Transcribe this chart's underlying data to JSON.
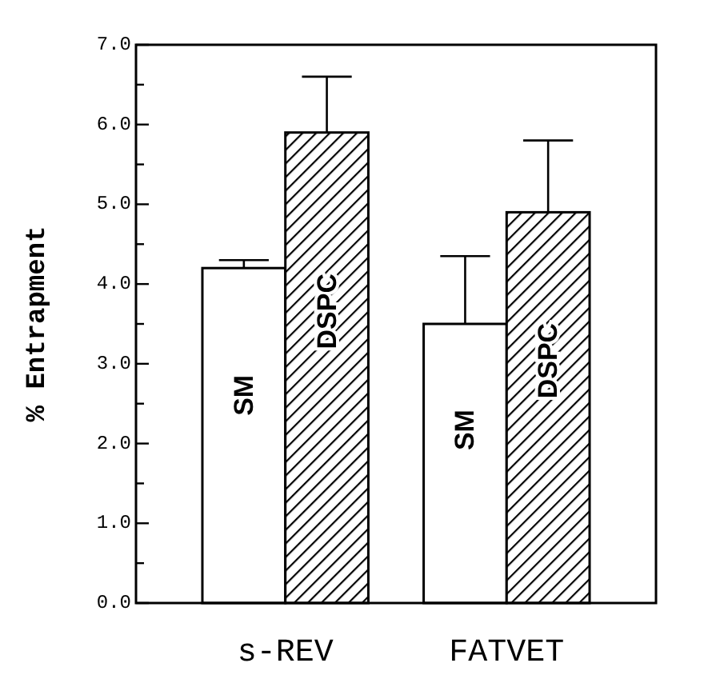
{
  "chart_data": {
    "type": "bar",
    "ylabel": "% Entrapment",
    "categories": [
      "s-REV",
      "FATVET"
    ],
    "series": [
      {
        "name": "SM",
        "color": "#ffffff",
        "values": [
          4.2,
          3.5
        ],
        "errors": [
          [
            4.2,
            4.3
          ],
          [
            3.5,
            4.35
          ]
        ]
      },
      {
        "name": "DSPC",
        "color": "#000000",
        "values": [
          5.9,
          4.9
        ],
        "errors": [
          [
            5.9,
            6.6
          ],
          [
            4.9,
            5.8
          ]
        ]
      }
    ],
    "ylim": [
      0,
      7
    ],
    "yticks": [
      {
        "value": 0,
        "label": "0.0"
      },
      {
        "value": 0.5,
        "label": null
      },
      {
        "value": 1,
        "label": "1.0"
      },
      {
        "value": 1.5,
        "label": null
      },
      {
        "value": 2,
        "label": "2.0"
      },
      {
        "value": 2.5,
        "label": null
      },
      {
        "value": 3,
        "label": "3.0"
      },
      {
        "value": 3.5,
        "label": null
      },
      {
        "value": 4,
        "label": "4.0"
      },
      {
        "value": 4.5,
        "label": null
      },
      {
        "value": 5,
        "label": "5.0"
      },
      {
        "value": 5.5,
        "label": null
      },
      {
        "value": 6,
        "label": "6.0"
      },
      {
        "value": 6.5,
        "label": null
      },
      {
        "value": 7,
        "label": "7.0"
      }
    ],
    "grid": false
  }
}
